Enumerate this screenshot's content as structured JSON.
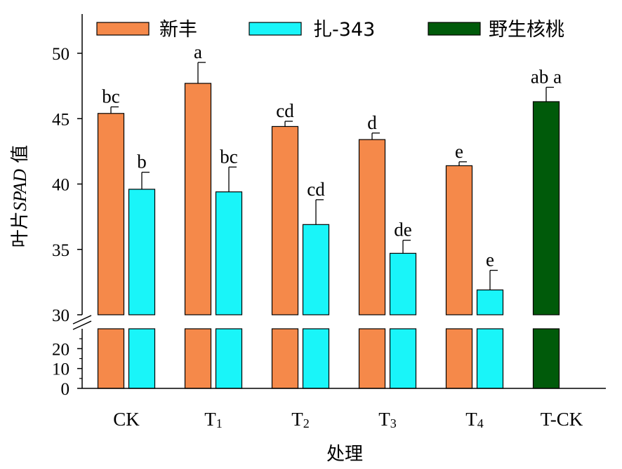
{
  "chart_data": {
    "type": "bar",
    "xlabel": "处理",
    "ylabel": "叶片SPAD值",
    "ylabel_parts": {
      "prefix": "叶片",
      "italic": "SPAD",
      "suffix": " 值"
    },
    "categories": [
      "CK",
      "T1",
      "T2",
      "T3",
      "T4",
      "T-CK"
    ],
    "category_labels": [
      {
        "main": "CK",
        "sub": ""
      },
      {
        "main": "T",
        "sub": "1"
      },
      {
        "main": "T",
        "sub": "2"
      },
      {
        "main": "T",
        "sub": "3"
      },
      {
        "main": "T",
        "sub": "4"
      },
      {
        "main": "T-CK",
        "sub": ""
      }
    ],
    "axis_break": {
      "lower_range": [
        0,
        30
      ],
      "upper_range": [
        30,
        53
      ]
    },
    "yticks_upper": [
      30,
      35,
      40,
      45,
      50
    ],
    "yticks_lower": [
      0,
      10,
      20
    ],
    "legend_position": "top",
    "grid": false,
    "series": [
      {
        "name": "新丰",
        "color": "#F5894A",
        "values": [
          45.4,
          47.7,
          44.4,
          43.4,
          41.4,
          null
        ],
        "errors": [
          0.5,
          1.6,
          0.4,
          0.5,
          0.3,
          null
        ],
        "labels": [
          "bc",
          "a",
          "cd",
          "d",
          "e",
          null
        ]
      },
      {
        "name": "扎-343",
        "color": "#19F5F9",
        "values": [
          39.6,
          39.4,
          36.9,
          34.7,
          31.9,
          null
        ],
        "errors": [
          1.3,
          1.9,
          1.9,
          1.0,
          1.5,
          null
        ],
        "labels": [
          "b",
          "bc",
          "cd",
          "de",
          "e",
          null
        ]
      },
      {
        "name": "野生核桃",
        "color": "#005A0A",
        "values": [
          null,
          null,
          null,
          null,
          null,
          46.3
        ],
        "errors": [
          null,
          null,
          null,
          null,
          null,
          1.1
        ],
        "labels": [
          null,
          null,
          null,
          null,
          null,
          "ab a"
        ]
      }
    ]
  }
}
